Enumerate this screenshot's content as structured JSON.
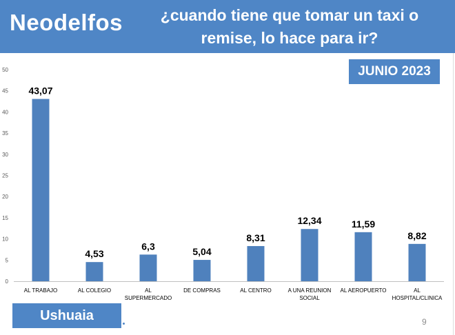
{
  "header": {
    "brand": "Neodelfos",
    "question_line1": "¿cuando tiene que tomar un taxi o",
    "question_line2": "remise, lo hace para ir?"
  },
  "badge": {
    "label": "JUNIO 2023"
  },
  "footer": {
    "location": "Ushuaia",
    "page_number": "9"
  },
  "colors": {
    "accent": "#4f86c6",
    "bar": "#4f81bd",
    "text": "#000000"
  },
  "chart_data": {
    "type": "bar",
    "categories": [
      [
        "AL TRABAJO"
      ],
      [
        "AL COLEGIO"
      ],
      [
        "AL",
        "SUPERMERCADO"
      ],
      [
        "DE COMPRAS"
      ],
      [
        "AL CENTRO"
      ],
      [
        "A UNA REUNION",
        "SOCIAL"
      ],
      [
        "AL AEROPUERTO"
      ],
      [
        "AL",
        "HOSPITAL/CLINICA"
      ]
    ],
    "values": [
      43.07,
      4.53,
      6.3,
      5.04,
      8.31,
      12.34,
      11.59,
      8.82
    ],
    "value_labels": [
      "43,07",
      "4,53",
      "6,3",
      "5,04",
      "8,31",
      "12,34",
      "11,59",
      "8,82"
    ],
    "y_ticks": [
      0,
      5,
      10,
      15,
      20,
      25,
      30,
      35,
      40,
      45,
      50
    ],
    "ylim": [
      0,
      50
    ],
    "grid": false,
    "legend": "none",
    "title": "",
    "xlabel": "",
    "ylabel": ""
  }
}
